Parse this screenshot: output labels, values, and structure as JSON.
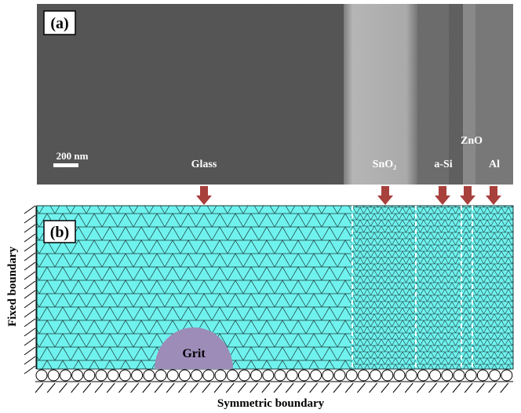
{
  "panel_a": {
    "label": "(a)",
    "scale_bar": "200 nm",
    "layers": [
      "Glass",
      "SnO₂",
      "a-Si",
      "ZnO",
      "Al"
    ]
  },
  "panel_b": {
    "label": "(b)",
    "grit": "Grit",
    "left_boundary": "Fixed boundary",
    "bottom_boundary": "Symmetric boundary"
  }
}
